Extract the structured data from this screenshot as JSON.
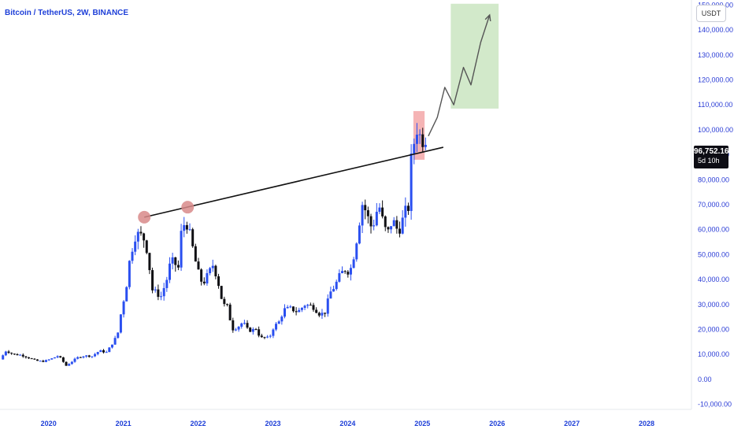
{
  "header": {
    "title": "Bitcoin / TetherUS, 2W, BINANCE",
    "currency_button": "USDT"
  },
  "price_badge": {
    "price": "96,752.16",
    "countdown": "5d 10h"
  },
  "colors": {
    "up": "#2a4ff0",
    "down": "#101014",
    "accent_text": "#1e3fd8",
    "target_zone": "#cde7c4",
    "resistance_zone": "#f3a7a8",
    "peak_marker": "#d88a8a"
  },
  "chart_data": {
    "type": "candlestick",
    "y_axis": {
      "ticks": [
        "-10,000.00",
        "0.00",
        "10,000.00",
        "20,000.00",
        "30,000.00",
        "40,000.00",
        "50,000.00",
        "60,000.00",
        "70,000.00",
        "80,000.00",
        "90,000.00",
        "100,000.00",
        "110,000.00",
        "120,000.00",
        "130,000.00",
        "140,000.00",
        "150,000.00"
      ],
      "range": [
        -12000,
        152000
      ]
    },
    "x_axis": {
      "ticks": [
        "2020",
        "2021",
        "2022",
        "2023",
        "2024",
        "2025",
        "2026",
        "2027",
        "2028"
      ],
      "range": [
        2019.35,
        2028.6
      ]
    },
    "price_path": [
      [
        2019.37,
        8000
      ],
      [
        2019.45,
        11500
      ],
      [
        2019.55,
        10000
      ],
      [
        2019.65,
        9800
      ],
      [
        2019.75,
        8700
      ],
      [
        2019.85,
        7500
      ],
      [
        2019.95,
        7200
      ],
      [
        2020.05,
        8200
      ],
      [
        2020.15,
        9500
      ],
      [
        2020.2,
        7800
      ],
      [
        2020.25,
        5400
      ],
      [
        2020.32,
        6900
      ],
      [
        2020.4,
        8700
      ],
      [
        2020.5,
        9500
      ],
      [
        2020.6,
        9300
      ],
      [
        2020.7,
        11500
      ],
      [
        2020.8,
        10800
      ],
      [
        2020.85,
        13500
      ],
      [
        2020.9,
        15700
      ],
      [
        2020.95,
        19000
      ],
      [
        2021.0,
        29000
      ],
      [
        2021.05,
        35000
      ],
      [
        2021.1,
        47000
      ],
      [
        2021.17,
        57000
      ],
      [
        2021.23,
        58500
      ],
      [
        2021.3,
        56000
      ],
      [
        2021.35,
        50000
      ],
      [
        2021.4,
        36000
      ],
      [
        2021.45,
        35000
      ],
      [
        2021.52,
        33000
      ],
      [
        2021.6,
        40000
      ],
      [
        2021.65,
        47000
      ],
      [
        2021.7,
        47500
      ],
      [
        2021.75,
        43000
      ],
      [
        2021.8,
        61000
      ],
      [
        2021.86,
        63000
      ],
      [
        2021.92,
        57000
      ],
      [
        2021.97,
        49000
      ],
      [
        2022.02,
        43000
      ],
      [
        2022.08,
        38000
      ],
      [
        2022.15,
        42000
      ],
      [
        2022.22,
        46000
      ],
      [
        2022.28,
        40000
      ],
      [
        2022.35,
        30000
      ],
      [
        2022.42,
        29000
      ],
      [
        2022.47,
        20000
      ],
      [
        2022.55,
        21000
      ],
      [
        2022.62,
        23000
      ],
      [
        2022.68,
        20000
      ],
      [
        2022.73,
        19500
      ],
      [
        2022.8,
        20500
      ],
      [
        2022.85,
        16500
      ],
      [
        2022.9,
        16800
      ],
      [
        2022.97,
        16500
      ],
      [
        2023.03,
        21000
      ],
      [
        2023.1,
        23000
      ],
      [
        2023.17,
        28000
      ],
      [
        2023.25,
        28500
      ],
      [
        2023.35,
        27000
      ],
      [
        2023.45,
        30000
      ],
      [
        2023.55,
        29300
      ],
      [
        2023.65,
        26000
      ],
      [
        2023.72,
        27000
      ],
      [
        2023.78,
        34500
      ],
      [
        2023.85,
        37500
      ],
      [
        2023.92,
        42000
      ],
      [
        2023.98,
        44000
      ],
      [
        2024.05,
        43000
      ],
      [
        2024.12,
        52000
      ],
      [
        2024.17,
        62000
      ],
      [
        2024.22,
        71000
      ],
      [
        2024.3,
        64000
      ],
      [
        2024.35,
        60000
      ],
      [
        2024.4,
        67000
      ],
      [
        2024.45,
        69000
      ],
      [
        2024.5,
        62000
      ],
      [
        2024.55,
        58000
      ],
      [
        2024.62,
        64000
      ],
      [
        2024.7,
        59000
      ],
      [
        2024.75,
        63500
      ],
      [
        2024.8,
        68000
      ],
      [
        2024.84,
        69000
      ],
      [
        2024.87,
        88000
      ],
      [
        2024.92,
        97000
      ],
      [
        2024.96,
        102000
      ],
      [
        2025.0,
        95000
      ],
      [
        2025.05,
        96750
      ]
    ],
    "series": [
      {
        "kind": "trendline",
        "points": [
          [
            2021.28,
            65000
          ],
          [
            2025.28,
            93000
          ]
        ]
      },
      {
        "kind": "projection",
        "points": [
          [
            2025.08,
            97500
          ],
          [
            2025.2,
            105000
          ],
          [
            2025.3,
            117000
          ],
          [
            2025.42,
            110000
          ],
          [
            2025.55,
            125000
          ],
          [
            2025.65,
            118000
          ],
          [
            2025.78,
            135000
          ],
          [
            2025.9,
            146000
          ]
        ]
      }
    ],
    "annotations": [
      {
        "kind": "zone",
        "name": "resistance",
        "x": [
          2024.88,
          2025.03
        ],
        "y": [
          88000,
          107500
        ]
      },
      {
        "kind": "zone",
        "name": "target",
        "x": [
          2025.38,
          2026.02
        ],
        "y": [
          108500,
          150500
        ]
      },
      {
        "kind": "marker",
        "name": "peak",
        "x": 2021.28,
        "y": 65000
      },
      {
        "kind": "marker",
        "name": "peak",
        "x": 2021.86,
        "y": 69000
      }
    ],
    "grid": false,
    "legend": "none"
  }
}
